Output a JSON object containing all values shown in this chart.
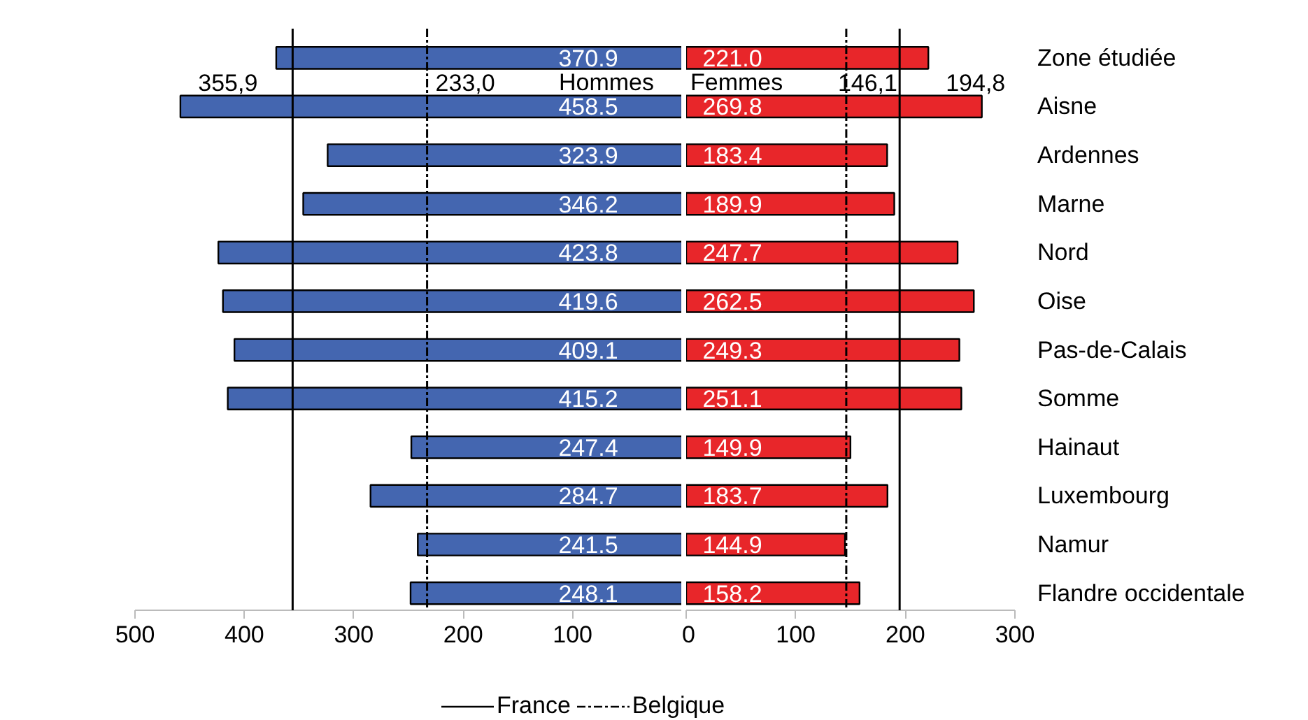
{
  "chart_data": [
    {
      "type": "bar",
      "orientation": "horizontal",
      "tick_labels": "x",
      "categories": [
        null,
        null,
        null,
        null,
        null,
        null,
        null,
        null,
        null,
        null,
        null,
        null
      ],
      "series": [
        {
          "name": "Hommes",
          "color": "#4466b0",
          "values": [
            370.9,
            458.5,
            323.9,
            346.2,
            423.8,
            419.6,
            409.1,
            415.2,
            247.4,
            284.7,
            241.5,
            248.1
          ],
          "value_labels": [
            "370.9",
            "458.5",
            "323.9",
            "346.2",
            "423.8",
            "419.6",
            "409.1",
            "415.2",
            "247.4",
            "284.7",
            "241.5",
            "248.1"
          ]
        }
      ],
      "xlim": [
        500,
        0
      ],
      "xticks": [
        500,
        400,
        300,
        200,
        100,
        {
          "value": 0,
          "label": null
        }
      ],
      "ref_lines": [
        {
          "axis": "x",
          "value": 355.9,
          "label": "355,9",
          "line_style": "solid",
          "color": "#000000"
        },
        {
          "axis": "x",
          "value": 233.0,
          "label": "233,0",
          "line_style": "dashed",
          "color": "#000000"
        }
      ],
      "annotations": [
        "France",
        "Belgique"
      ],
      "grid": false
    },
    {
      "type": "bar",
      "orientation": "horizontal",
      "categories": [
        "Zone étudiée",
        "Aisne",
        "Ardennes",
        "Marne",
        "Nord",
        "Oise",
        "Pas-de-Calais",
        "Somme",
        "Hainaut",
        "Luxembourg",
        "Namur",
        "Flandre occidentale"
      ],
      "series": [
        {
          "name": "Femmes",
          "color": "#e8262a",
          "values": [
            221.0,
            269.8,
            183.4,
            189.9,
            247.7,
            262.5,
            249.3,
            251.1,
            149.9,
            183.7,
            144.9,
            158.2
          ],
          "value_labels": [
            "221.0",
            "269.8",
            "183.4",
            "189.9",
            "247.7",
            "262.5",
            "249.3",
            "251.1",
            "149.9",
            "183.7",
            "144.9",
            "158.2"
          ]
        }
      ],
      "xlim": [
        0,
        300
      ],
      "xticks": [
        0,
        100,
        200,
        300
      ],
      "ref_lines": [
        {
          "axis": "x",
          "value": 146.1,
          "label": "146,1",
          "line_style": "dashed",
          "color": "#000000"
        },
        {
          "axis": "x",
          "value": 194.8,
          "label": "194,8",
          "line_style": "solid",
          "color": "#000000"
        }
      ],
      "grid": false
    }
  ]
}
